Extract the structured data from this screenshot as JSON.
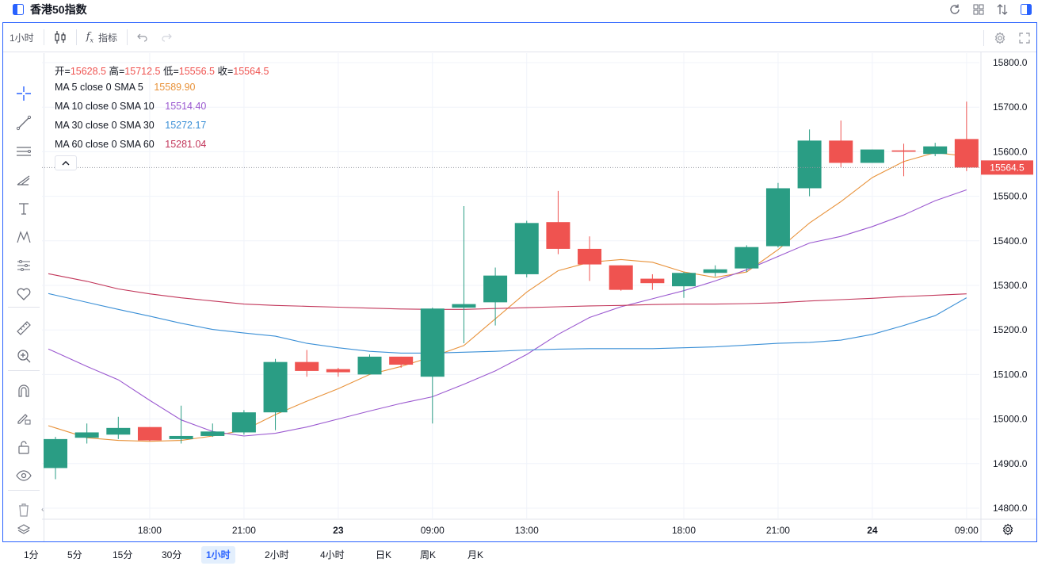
{
  "window": {
    "title": "香港50指数"
  },
  "toolbar": {
    "interval": "1小时",
    "indicators_label": "指标"
  },
  "legend": {
    "open_label": "开=",
    "open": "15628.5",
    "high_label": "高=",
    "high": "15712.5",
    "low_label": "低=",
    "low": "15556.5",
    "close_label": "收=",
    "close": "15564.5",
    "ma": [
      {
        "label": "MA 5 close 0 SMA 5",
        "value": "15589.90",
        "color": "#e8923a"
      },
      {
        "label": "MA 10 close 0 SMA 10",
        "value": "15514.40",
        "color": "#9b59d0"
      },
      {
        "label": "MA 30 close 0 SMA 30",
        "value": "15272.17",
        "color": "#3a8fd6"
      },
      {
        "label": "MA 60 close 0 SMA 60",
        "value": "15281.04",
        "color": "#c2365a"
      }
    ]
  },
  "colors": {
    "up": "#26a69a",
    "up_body": "#2a9d84",
    "down": "#ef5350",
    "accent": "#2962ff"
  },
  "chart_data": {
    "type": "candlestick",
    "ylim": [
      14750,
      15830
    ],
    "y_ticks": [
      "15800.0",
      "15700.0",
      "15600.0",
      "15500.0",
      "15400.0",
      "15300.0",
      "15200.0",
      "15100.0",
      "15000.0",
      "14900.0",
      "14800.0"
    ],
    "x_ticks": [
      {
        "label": "18:00",
        "bar": 3,
        "bold": false
      },
      {
        "label": "21:00",
        "bar": 6,
        "bold": false
      },
      {
        "label": "23",
        "bar": 9,
        "bold": true
      },
      {
        "label": "09:00",
        "bar": 12,
        "bold": false
      },
      {
        "label": "13:00",
        "bar": 15,
        "bold": false
      },
      {
        "label": "18:00",
        "bar": 20,
        "bold": false
      },
      {
        "label": "21:00",
        "bar": 23,
        "bold": false
      },
      {
        "label": "24",
        "bar": 26,
        "bold": true
      },
      {
        "label": "09:00",
        "bar": 29,
        "bold": false
      }
    ],
    "last_price": "15564.5",
    "candles": [
      {
        "o": 14890,
        "h": 14960,
        "l": 14865,
        "c": 14955
      },
      {
        "o": 14958,
        "h": 14990,
        "l": 14945,
        "c": 14970
      },
      {
        "o": 14965,
        "h": 15005,
        "l": 14955,
        "c": 14980
      },
      {
        "o": 14982,
        "h": 14982,
        "l": 14950,
        "c": 14952
      },
      {
        "o": 14955,
        "h": 15030,
        "l": 14945,
        "c": 14962
      },
      {
        "o": 14962,
        "h": 14990,
        "l": 14960,
        "c": 14972
      },
      {
        "o": 14970,
        "h": 15020,
        "l": 14965,
        "c": 15015
      },
      {
        "o": 15015,
        "h": 15135,
        "l": 14975,
        "c": 15128
      },
      {
        "o": 15128,
        "h": 15155,
        "l": 15095,
        "c": 15108
      },
      {
        "o": 15112,
        "h": 15115,
        "l": 15095,
        "c": 15105
      },
      {
        "o": 15100,
        "h": 15145,
        "l": 15100,
        "c": 15140
      },
      {
        "o": 15140,
        "h": 15140,
        "l": 15115,
        "c": 15122
      },
      {
        "o": 15095,
        "h": 15250,
        "l": 14990,
        "c": 15248
      },
      {
        "o": 15250,
        "h": 15478,
        "l": 15170,
        "c": 15258
      },
      {
        "o": 15262,
        "h": 15340,
        "l": 15210,
        "c": 15322
      },
      {
        "o": 15325,
        "h": 15445,
        "l": 15318,
        "c": 15440
      },
      {
        "o": 15442,
        "h": 15512,
        "l": 15370,
        "c": 15382
      },
      {
        "o": 15382,
        "h": 15410,
        "l": 15310,
        "c": 15347
      },
      {
        "o": 15345,
        "h": 15345,
        "l": 15288,
        "c": 15290
      },
      {
        "o": 15315,
        "h": 15325,
        "l": 15290,
        "c": 15305
      },
      {
        "o": 15298,
        "h": 15330,
        "l": 15272,
        "c": 15328
      },
      {
        "o": 15328,
        "h": 15345,
        "l": 15320,
        "c": 15336
      },
      {
        "o": 15338,
        "h": 15390,
        "l": 15330,
        "c": 15386
      },
      {
        "o": 15388,
        "h": 15530,
        "l": 15385,
        "c": 15518
      },
      {
        "o": 15518,
        "h": 15650,
        "l": 15500,
        "c": 15625
      },
      {
        "o": 15625,
        "h": 15670,
        "l": 15565,
        "c": 15575
      },
      {
        "o": 15575,
        "h": 15605,
        "l": 15575,
        "c": 15605
      },
      {
        "o": 15603,
        "h": 15618,
        "l": 15545,
        "c": 15600
      },
      {
        "o": 15595,
        "h": 15620,
        "l": 15590,
        "c": 15612
      },
      {
        "o": 15628.5,
        "h": 15712.5,
        "l": 15556.5,
        "c": 15564.5
      }
    ],
    "series": [
      {
        "name": "MA 5 close 0 SMA 5",
        "color": "#e8923a",
        "values": [
          14980,
          14958,
          14952,
          14950,
          14952,
          14962,
          14975,
          15010,
          15040,
          15068,
          15100,
          15118,
          15140,
          15165,
          15225,
          15285,
          15333,
          15352,
          15358,
          15352,
          15330,
          15318,
          15330,
          15380,
          15440,
          15488,
          15542,
          15578,
          15598,
          15589.9
        ]
      },
      {
        "name": "MA 10 close 0 SMA 10",
        "color": "#9b59d0",
        "values": [
          15150,
          15118,
          15088,
          15042,
          14998,
          14972,
          14962,
          14968,
          14982,
          15000,
          15018,
          15035,
          15050,
          15078,
          15108,
          15145,
          15190,
          15228,
          15252,
          15270,
          15288,
          15310,
          15335,
          15365,
          15395,
          15410,
          15432,
          15458,
          15490,
          15514.4
        ]
      },
      {
        "name": "MA 30 close 0 SMA 30",
        "color": "#3a8fd6",
        "values": [
          15278,
          15262,
          15246,
          15231,
          15215,
          15201,
          15193,
          15186,
          15170,
          15160,
          15152,
          15148,
          15148,
          15150,
          15152,
          15155,
          15157,
          15158,
          15158,
          15158,
          15160,
          15162,
          15166,
          15170,
          15172,
          15177,
          15190,
          15210,
          15232,
          15272.17
        ]
      },
      {
        "name": "MA 60 close 0 SMA 60",
        "color": "#c2365a",
        "values": [
          15323,
          15309,
          15292,
          15281,
          15272,
          15265,
          15258,
          15255,
          15253,
          15251,
          15249,
          15247,
          15246,
          15246,
          15248,
          15250,
          15252,
          15254,
          15255,
          15257,
          15258,
          15258,
          15259,
          15261,
          15265,
          15268,
          15271,
          15275,
          15278,
          15281.04
        ]
      }
    ]
  },
  "intervals": [
    {
      "label": "1分",
      "active": false
    },
    {
      "label": "5分",
      "active": false
    },
    {
      "label": "15分",
      "active": false
    },
    {
      "label": "30分",
      "active": false
    },
    {
      "label": "1小时",
      "active": true
    },
    {
      "label": "2小时",
      "active": false
    },
    {
      "label": "4小时",
      "active": false
    },
    {
      "label": "日K",
      "active": false
    },
    {
      "label": "周K",
      "active": false
    },
    {
      "label": "月K",
      "active": false
    }
  ]
}
